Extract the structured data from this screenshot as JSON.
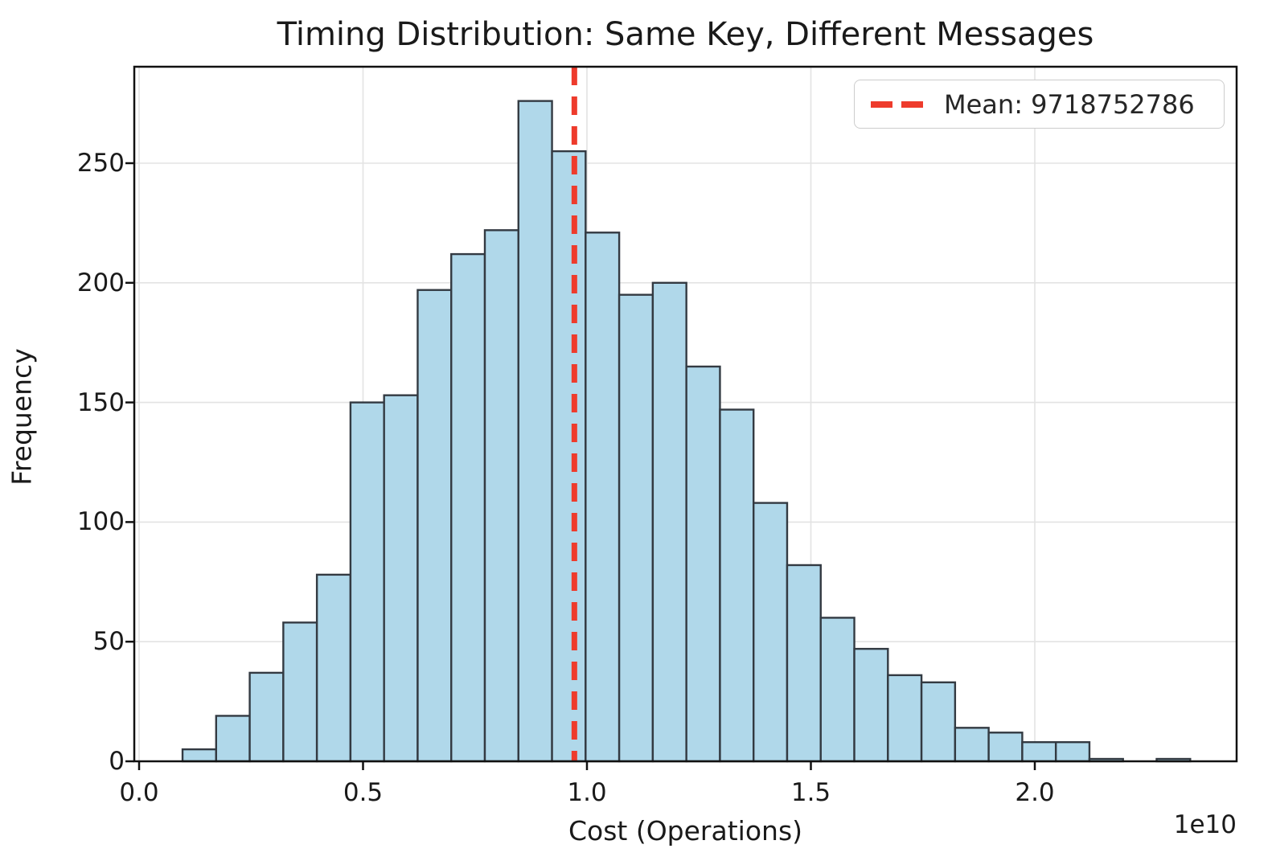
{
  "title": "Timing Distribution: Same Key, Different Messages",
  "legend": {
    "mean_label": "Mean: 9718752786"
  },
  "colors": {
    "bar_fill": "#b0d8ea",
    "bar_edge": "#333a42",
    "mean_line": "#ee3b2c",
    "grid": "#e3e3e3",
    "spine": "#111111",
    "text": "#1a1a1a"
  },
  "chart_data": {
    "type": "bar",
    "kind": "histogram",
    "title": "Timing Distribution: Same Key, Different Messages",
    "xlabel": "Cost (Operations)",
    "ylabel": "Frequency",
    "x_offset_label": "1e10",
    "bin_start": 970000000,
    "bin_width": 750000000,
    "frequencies": [
      5,
      19,
      37,
      58,
      78,
      150,
      153,
      197,
      212,
      222,
      276,
      255,
      221,
      195,
      200,
      165,
      147,
      108,
      82,
      60,
      47,
      36,
      33,
      14,
      12,
      8,
      8,
      1,
      0,
      1
    ],
    "mean": 9718752786,
    "x_ticks": [
      {
        "value": 0.0,
        "label": "0.0"
      },
      {
        "value": 0.5,
        "label": "0.5"
      },
      {
        "value": 1.0,
        "label": "1.0"
      },
      {
        "value": 1.5,
        "label": "1.5"
      },
      {
        "value": 2.0,
        "label": "2.0"
      }
    ],
    "x_tick_unit": 10000000000,
    "y_ticks": [
      {
        "value": 0,
        "label": "0"
      },
      {
        "value": 50,
        "label": "50"
      },
      {
        "value": 100,
        "label": "100"
      },
      {
        "value": 150,
        "label": "150"
      },
      {
        "value": 200,
        "label": "200"
      },
      {
        "value": 250,
        "label": "250"
      }
    ],
    "ylim": [
      0,
      290
    ],
    "xlim_e10": [
      -0.011,
      2.45
    ],
    "grid": true,
    "legend_position": "upper right"
  }
}
